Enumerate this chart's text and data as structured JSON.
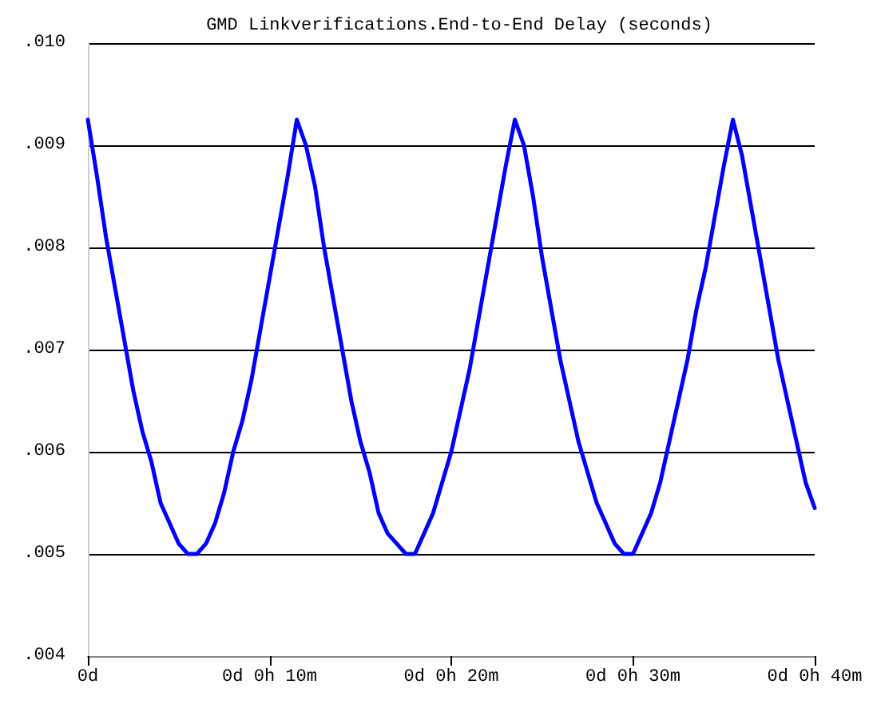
{
  "chart_data": {
    "type": "line",
    "title": "GMD Linkverifications.End-to-End Delay (seconds)",
    "categories": [
      "0d",
      null,
      null,
      null,
      null,
      null,
      null,
      null,
      null,
      null,
      null,
      null,
      null,
      null,
      null,
      null,
      null,
      null,
      null,
      null,
      "0d 0h 10m",
      null,
      null,
      null,
      null,
      null,
      null,
      null,
      null,
      null,
      null,
      null,
      null,
      null,
      null,
      null,
      null,
      null,
      null,
      null,
      "0d 0h 20m",
      null,
      null,
      null,
      null,
      null,
      null,
      null,
      null,
      null,
      null,
      null,
      null,
      null,
      null,
      null,
      null,
      null,
      null,
      null,
      "0d 0h 30m",
      null,
      null,
      null,
      null,
      null,
      null,
      null,
      null,
      null,
      null,
      null,
      null,
      null,
      null,
      null,
      null,
      null,
      null,
      null,
      "0d 0h 40m"
    ],
    "series": [
      {
        "color": "#0000ff",
        "values": [
          0.00925,
          0.0087,
          0.0081,
          0.0076,
          0.0071,
          0.0066,
          0.0062,
          0.0059,
          0.0055,
          0.0053,
          0.0051,
          0.005,
          0.005,
          0.0051,
          0.0053,
          0.0056,
          0.006,
          0.0063,
          0.0067,
          0.0072,
          0.0077,
          0.0082,
          0.0087,
          0.00925,
          0.009,
          0.0086,
          0.008,
          0.0075,
          0.007,
          0.0065,
          0.0061,
          0.0058,
          0.0054,
          0.0052,
          0.0051,
          0.005,
          0.005,
          0.0052,
          0.0054,
          0.0057,
          0.006,
          0.0064,
          0.0068,
          0.0073,
          0.0078,
          0.0083,
          0.0088,
          0.00925,
          0.009,
          0.0085,
          0.0079,
          0.0074,
          0.0069,
          0.0065,
          0.0061,
          0.0058,
          0.0055,
          0.0053,
          0.0051,
          0.005,
          0.005,
          0.0052,
          0.0054,
          0.0057,
          0.0061,
          0.0065,
          0.0069,
          0.0074,
          0.0078,
          0.0083,
          0.0088,
          0.00925,
          0.0089,
          0.0084,
          0.0079,
          0.0074,
          0.0069,
          0.0065,
          0.0061,
          0.0057,
          0.00545
        ]
      }
    ],
    "ylim": [
      0.004,
      0.01
    ],
    "yticks": [
      {
        "value": 0.004,
        "label": ".004"
      },
      {
        "value": 0.005,
        "label": ".005"
      },
      {
        "value": 0.006,
        "label": ".006"
      },
      {
        "value": 0.007,
        "label": ".007"
      },
      {
        "value": 0.008,
        "label": ".008"
      },
      {
        "value": 0.009,
        "label": ".009"
      },
      {
        "value": 0.01,
        "label": ".010"
      }
    ],
    "grid": "y",
    "marker": "none",
    "line_style": "solid"
  }
}
